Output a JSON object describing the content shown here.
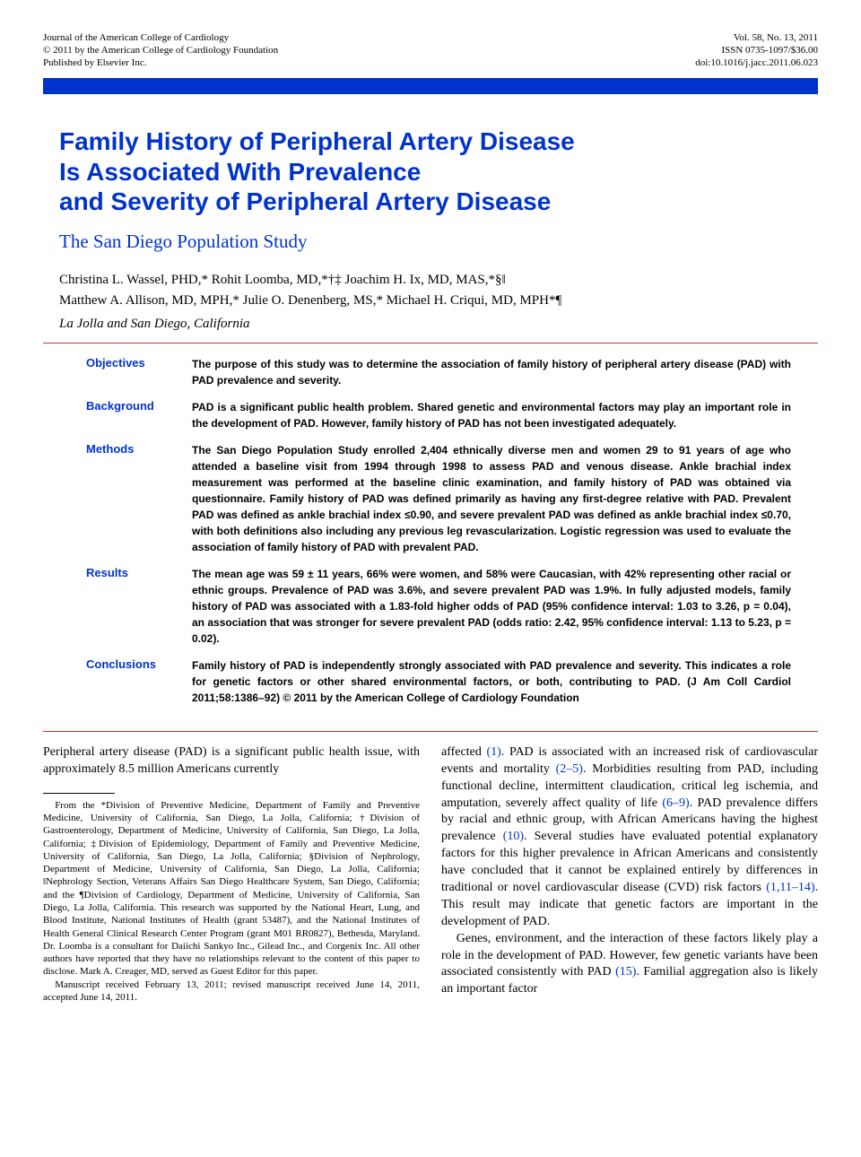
{
  "header": {
    "left_line1": "Journal of the American College of Cardiology",
    "left_line2": "© 2011 by the American College of Cardiology Foundation",
    "left_line3": "Published by Elsevier Inc.",
    "right_line1": "Vol. 58, No. 13, 2011",
    "right_line2": "ISSN 0735-1097/$36.00",
    "right_line3": "doi:10.1016/j.jacc.2011.06.023"
  },
  "title": {
    "line1": "Family History of Peripheral Artery Disease",
    "line2": "Is Associated With Prevalence",
    "line3": "and Severity of Peripheral Artery Disease",
    "subtitle": "The San Diego Population Study"
  },
  "authors": {
    "line1": "Christina L. Wassel, PHD,* Rohit Loomba, MD,*†‡ Joachim H. Ix, MD, MAS,*§‖",
    "line2": "Matthew A. Allison, MD, MPH,* Julie O. Denenberg, MS,* Michael H. Criqui, MD, MPH*¶",
    "location": "La Jolla and San Diego, California"
  },
  "abstract": {
    "objectives": {
      "label": "Objectives",
      "text": "The purpose of this study was to determine the association of family history of peripheral artery disease (PAD) with PAD prevalence and severity."
    },
    "background": {
      "label": "Background",
      "text": "PAD is a significant public health problem. Shared genetic and environmental factors may play an important role in the development of PAD. However, family history of PAD has not been investigated adequately."
    },
    "methods": {
      "label": "Methods",
      "text": "The San Diego Population Study enrolled 2,404 ethnically diverse men and women 29 to 91 years of age who attended a baseline visit from 1994 through 1998 to assess PAD and venous disease. Ankle brachial index measurement was performed at the baseline clinic examination, and family history of PAD was obtained via questionnaire. Family history of PAD was defined primarily as having any first-degree relative with PAD. Prevalent PAD was defined as ankle brachial index ≤0.90, and severe prevalent PAD was defined as ankle brachial index ≤0.70, with both definitions also including any previous leg revascularization. Logistic regression was used to evaluate the association of family history of PAD with prevalent PAD."
    },
    "results": {
      "label": "Results",
      "text": "The mean age was 59 ± 11 years, 66% were women, and 58% were Caucasian, with 42% representing other racial or ethnic groups. Prevalence of PAD was 3.6%, and severe prevalent PAD was 1.9%. In fully adjusted models, family history of PAD was associated with a 1.83-fold higher odds of PAD (95% confidence interval: 1.03 to 3.26, p = 0.04), an association that was stronger for severe prevalent PAD (odds ratio: 2.42, 95% confidence interval: 1.13 to 5.23, p = 0.02)."
    },
    "conclusions": {
      "label": "Conclusions",
      "text": "Family history of PAD is independently strongly associated with PAD prevalence and severity. This indicates a role for genetic factors or other shared environmental factors, or both, contributing to PAD.   (J Am Coll Cardiol 2011;58:1386–92) © 2011 by the American College of Cardiology Foundation"
    }
  },
  "body": {
    "left_p1": "Peripheral artery disease (PAD) is a significant public health issue, with approximately 8.5 million Americans currently",
    "right_p1_pre": "affected ",
    "right_p1_ref1": "(1)",
    "right_p1_mid1": ". PAD is associated with an increased risk of cardiovascular events and mortality ",
    "right_p1_ref2": "(2–5)",
    "right_p1_mid2": ". Morbidities resulting from PAD, including functional decline, intermittent claudication, critical leg ischemia, and amputation, severely affect quality of life ",
    "right_p1_ref3": "(6–9)",
    "right_p1_mid3": ". PAD prevalence differs by racial and ethnic group, with African Americans having the highest prevalence ",
    "right_p1_ref4": "(10)",
    "right_p1_mid4": ". Several studies have evaluated potential explanatory factors for this higher prevalence in African Americans and consistently have concluded that it cannot be explained entirely by differences in traditional or novel cardiovascular disease (CVD) risk factors ",
    "right_p1_ref5": "(1,11–14)",
    "right_p1_mid5": ". This result may indicate that genetic factors are important in the development of PAD.",
    "right_p2_pre": "Genes, environment, and the interaction of these factors likely play a role in the development of PAD. However, few genetic variants have been associated consistently with PAD ",
    "right_p2_ref1": "(15)",
    "right_p2_post": ". Familial aggregation also is likely an important factor"
  },
  "footnote": {
    "p1": "From the *Division of Preventive Medicine, Department of Family and Preventive Medicine, University of California, San Diego, La Jolla, California; †Division of Gastroenterology, Department of Medicine, University of California, San Diego, La Jolla, California; ‡Division of Epidemiology, Department of Family and Preventive Medicine, University of California, San Diego, La Jolla, California; §Division of Nephrology, Department of Medicine, University of California, San Diego, La Jolla, California; ‖Nephrology Section, Veterans Affairs San Diego Healthcare System, San Diego, California; and the ¶Division of Cardiology, Department of Medicine, University of California, San Diego, La Jolla, California. This research was supported by the National Heart, Lung, and Blood Institute, National Institutes of Health (grant 53487), and the National Institutes of Health General Clinical Research Center Program (grant M01 RR0827), Bethesda, Maryland. Dr. Loomba is a consultant for Daiichi Sankyo Inc., Gilead Inc., and Corgenix Inc. All other authors have reported that they have no relationships relevant to the content of this paper to disclose. Mark A. Creager, MD, served as Guest Editor for this paper.",
    "p2": "Manuscript received February 13, 2011; revised manuscript received June 14, 2011, accepted June 14, 2011."
  },
  "colors": {
    "blue": "#0033cc",
    "red": "#cc3333",
    "text": "#000000",
    "background": "#ffffff"
  }
}
